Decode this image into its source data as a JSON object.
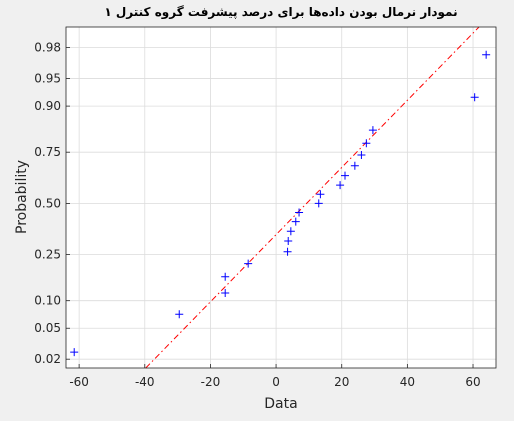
{
  "chart_data": {
    "type": "scatter",
    "subtype": "normal-probability-plot",
    "title": "نمودار نرمال بودن داده‌ها برای درصد پیشرفت گروه کنترل ۱",
    "xlabel": "Data",
    "ylabel": "Probability",
    "xlim": [
      -64,
      67
    ],
    "ylim_probability": [
      0.015,
      0.99
    ],
    "x_ticks": [
      -60,
      -40,
      -20,
      0,
      20,
      40,
      60
    ],
    "x_tick_labels": [
      "-60",
      "-40",
      "-20",
      "0",
      "20",
      "40",
      "60"
    ],
    "y_ticks": [
      0.02,
      0.05,
      0.1,
      0.25,
      0.5,
      0.75,
      0.9,
      0.95,
      0.98
    ],
    "y_tick_labels": [
      "0.02",
      "0.05",
      "0.10",
      "0.25",
      "0.50",
      "0.75",
      "0.90",
      "0.95",
      "0.98"
    ],
    "grid": true,
    "points": [
      {
        "x": -61.5,
        "p": 0.025
      },
      {
        "x": -29.5,
        "p": 0.072
      },
      {
        "x": -15.5,
        "p": 0.119
      },
      {
        "x": -15.5,
        "p": 0.167
      },
      {
        "x": -8.5,
        "p": 0.214
      },
      {
        "x": 3.5,
        "p": 0.262
      },
      {
        "x": 3.7,
        "p": 0.31
      },
      {
        "x": 4.5,
        "p": 0.357
      },
      {
        "x": 6.0,
        "p": 0.405
      },
      {
        "x": 7.0,
        "p": 0.452
      },
      {
        "x": 13.0,
        "p": 0.5
      },
      {
        "x": 13.5,
        "p": 0.548
      },
      {
        "x": 19.5,
        "p": 0.595
      },
      {
        "x": 21.0,
        "p": 0.643
      },
      {
        "x": 24.0,
        "p": 0.69
      },
      {
        "x": 26.0,
        "p": 0.738
      },
      {
        "x": 27.5,
        "p": 0.786
      },
      {
        "x": 29.5,
        "p": 0.833
      },
      {
        "x": 60.5,
        "p": 0.919
      },
      {
        "x": 64.0,
        "p": 0.975
      }
    ],
    "reference_line": {
      "style": "dash-dot",
      "color": "#ff0000",
      "mean": 9.3,
      "sd": 22.6
    },
    "marker": {
      "symbol": "+",
      "color": "#0000ff"
    }
  }
}
